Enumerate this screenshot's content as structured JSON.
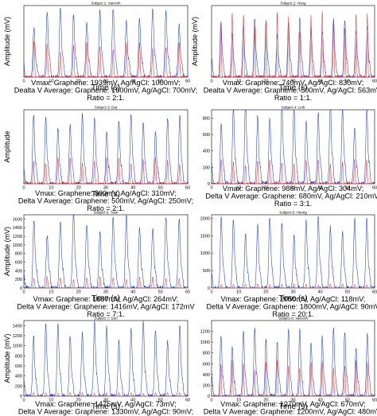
{
  "colors": {
    "graphene": "#1f3fd6",
    "agagcl": "#e8373a",
    "axis": "#000000"
  },
  "chart_data": [
    {
      "type": "line",
      "title": "Subject 1: VanAnh",
      "xlabel": "Time (s)",
      "ylabel": "Amplitude (mV)",
      "xlim": [
        0,
        60
      ],
      "ylim": [
        0,
        2000
      ],
      "xticks": [
        0,
        10,
        20,
        30,
        40,
        50,
        60
      ],
      "yticks": [],
      "peaks": 12,
      "series": [
        {
          "color": "blue",
          "peak": 1939,
          "values": [
            0,
            1939
          ]
        },
        {
          "color": "red",
          "peak": 1000,
          "values": [
            0,
            1000
          ]
        }
      ],
      "caption": [
        "Vmax: Graphene: 1939mV, Ag/AgCl: 1000mV;",
        "Dealta V Average: Graphene: 1600mV, Ag/AgCl: 700mV;",
        "Ratio = 2:1."
      ]
    },
    {
      "type": "line",
      "title": "Subject 2: Hung",
      "xlabel": "Time (s)",
      "ylabel": "Amplitude (mV)",
      "xlim": [
        0,
        60
      ],
      "ylim": [
        0,
        900
      ],
      "xticks": [
        0,
        10,
        20,
        30,
        40,
        50,
        60
      ],
      "yticks": [],
      "peaks": 14,
      "series": [
        {
          "color": "blue",
          "peak": 740,
          "values": [
            0,
            740
          ]
        },
        {
          "color": "red",
          "peak": 830,
          "values": [
            0,
            830
          ]
        }
      ],
      "caption": [
        "Vmax: Graphene: 740mV, Ag/AgCl: 830mV;",
        "Dealta V Average: Graphene: 500mV, Ag/AgCl: 563mV;",
        "Ratio = 1:1."
      ]
    },
    {
      "type": "line",
      "title": "Subject 3: Dat",
      "xlabel": "Time (s)",
      "ylabel": "Amplitude",
      "xlim": [
        0,
        60
      ],
      "ylim": [
        0,
        850
      ],
      "xticks": [
        0,
        10,
        20,
        30,
        40,
        50,
        60
      ],
      "yticks": [],
      "peaks": 13,
      "series": [
        {
          "color": "blue",
          "peak": 800,
          "values": [
            0,
            800
          ]
        },
        {
          "color": "red",
          "peak": 310,
          "values": [
            0,
            310
          ]
        }
      ],
      "caption": [
        "Vmax: Graphene: 800mV, Ag/AgCl: 310mV;",
        "Delta V Average: Graphene: 500mV, Ag/AgCl: 250mV;",
        "Ratio = 2:1."
      ]
    },
    {
      "type": "line",
      "title": "Subject 4: Linh",
      "xlabel": "",
      "ylabel": "",
      "xlim": [
        0,
        60
      ],
      "ylim": [
        0,
        900
      ],
      "xticks": [
        0,
        10,
        20,
        30,
        40,
        50,
        60
      ],
      "yticks": [
        0,
        200,
        400,
        600,
        800
      ],
      "peaks": 13,
      "series": [
        {
          "color": "blue",
          "peak": 986,
          "values": [
            0,
            986
          ]
        },
        {
          "color": "red",
          "peak": 304,
          "values": [
            0,
            304
          ]
        }
      ],
      "caption": [
        "Vmax: Graphene: 986mV, Ag/AgCl: 304mV;",
        "Delta V Average: Graphene: 680mV, Ag/AgCl: 210mV;",
        "Ratio = 3:1."
      ]
    },
    {
      "type": "line",
      "title": "Subject 5: Toan",
      "xlabel": "Time (s)",
      "ylabel": "Amplitude (mV)",
      "xlim": [
        0,
        60
      ],
      "ylim": [
        0,
        1700
      ],
      "xticks": [
        0,
        10,
        20,
        30,
        40,
        50,
        60
      ],
      "yticks": [
        0,
        200,
        400,
        600,
        800,
        1000,
        1200,
        1400,
        1600
      ],
      "peaks": 12,
      "series": [
        {
          "color": "blue",
          "peak": 1687,
          "values": [
            0,
            1687
          ]
        },
        {
          "color": "red",
          "peak": 264,
          "values": [
            0,
            264
          ]
        }
      ],
      "caption": [
        "Vmax: Graphene: 1687mV, Ag/AgCl: 264mV;",
        "Delta V Average: Graphene: 1416mV, Ag/AgCl: 172mV",
        "Ratio = 7:1."
      ]
    },
    {
      "type": "line",
      "title": "Subject 6: Huong",
      "xlabel": "Time (s)",
      "ylabel": "",
      "xlim": [
        0,
        60
      ],
      "ylim": [
        0,
        2100
      ],
      "xticks": [
        0,
        10,
        20,
        30,
        40,
        50,
        60
      ],
      "yticks": [
        0,
        500,
        1000,
        1500,
        2000
      ],
      "peaks": 13,
      "series": [
        {
          "color": "blue",
          "peak": 2050,
          "values": [
            0,
            2050
          ]
        },
        {
          "color": "red",
          "peak": 118,
          "values": [
            0,
            118
          ]
        }
      ],
      "caption": [
        "Vmax: Graphene: 2050mV, Ag/AgCl: 118mV;",
        "Delta V Average: Graphene: 1800mV, Ag/AgCl: 90mV",
        "Ratio = 20:1."
      ]
    },
    {
      "type": "line",
      "title": "Subject 7: Son",
      "xlabel": "Time (s)",
      "ylabel": "Amplitude (mV)",
      "xlim": [
        0,
        60
      ],
      "ylim": [
        0,
        1500
      ],
      "xticks": [
        0,
        10,
        20,
        30,
        40,
        50,
        60
      ],
      "yticks": [
        0,
        200,
        400,
        600,
        800,
        1000,
        1200,
        1400
      ],
      "peaks": 13,
      "series": [
        {
          "color": "blue",
          "peak": 1475,
          "values": [
            0,
            1475
          ]
        },
        {
          "color": "red",
          "peak": 73,
          "values": [
            0,
            73
          ]
        }
      ],
      "caption": [
        "Vmax: Graphene: 1475mV, Ag/AgCl: 73mV;",
        "Delta V Average: Graphene: 1330mV, Ag/AgCl: 90mV;"
      ]
    },
    {
      "type": "line",
      "title": "Subject 8: VanAnh",
      "xlabel": "Time (s)",
      "ylabel": "",
      "xlim": [
        0,
        60
      ],
      "ylim": [
        0,
        1400
      ],
      "xticks": [
        0,
        10,
        20,
        30,
        40,
        50,
        60
      ],
      "yticks": [
        0,
        200,
        400,
        600,
        800,
        1000,
        1200
      ],
      "peaks": 14,
      "series": [
        {
          "color": "blue",
          "peak": 1270,
          "values": [
            0,
            1270
          ]
        },
        {
          "color": "red",
          "peak": 670,
          "values": [
            0,
            670
          ]
        }
      ],
      "caption": [
        "Vmax: Graphene: 1270mV, Ag/AgCl: 670mV;",
        "Delta V Average: Graphene: 1200mV, Ag/AgCl: 480mV;"
      ]
    }
  ]
}
